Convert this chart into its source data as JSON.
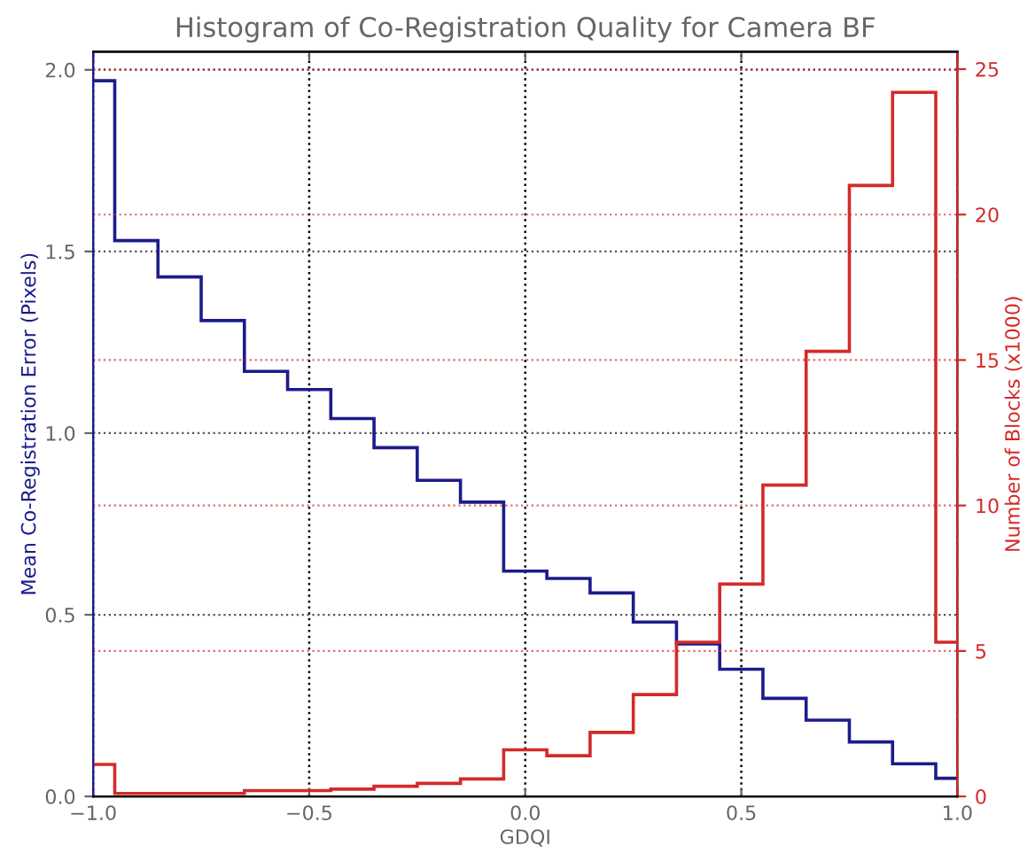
{
  "chart_data": {
    "type": "histogram",
    "title": "Histogram of Co-Registration Quality for Camera BF",
    "xlabel": "GDQI",
    "ylabel": "Mean Co-Registration Error (Pixels)",
    "y2label": "Number of Blocks (x1000)",
    "bins": [
      -1.0,
      -0.95,
      -0.85,
      -0.75,
      -0.65,
      -0.55,
      -0.45,
      -0.35,
      -0.25,
      -0.15,
      -0.05,
      0.05,
      0.15,
      0.25,
      0.35,
      0.45,
      0.55,
      0.65,
      0.75,
      0.85,
      0.95,
      1.0
    ],
    "series": [
      {
        "color": "#1c1c8c",
        "values": [
          1.97,
          1.53,
          1.43,
          1.31,
          1.17,
          1.12,
          1.04,
          0.96,
          0.87,
          0.81,
          0.62,
          0.6,
          0.56,
          0.48,
          0.42,
          0.35,
          0.27,
          0.21,
          0.15,
          0.09,
          0.05
        ]
      },
      {
        "color": "#d42a2a",
        "axis": "y2",
        "values": [
          1.1,
          0.1,
          0.1,
          0.1,
          0.2,
          0.2,
          0.25,
          0.35,
          0.45,
          0.6,
          1.6,
          1.4,
          2.2,
          3.5,
          5.3,
          7.3,
          10.7,
          15.3,
          21.0,
          24.2,
          5.3
        ]
      }
    ],
    "xlim": [
      -1.0,
      1.0
    ],
    "xticks": [
      {
        "value": -1.0,
        "label": "−1.0"
      },
      {
        "value": -0.5,
        "label": "−0.5"
      },
      {
        "value": 0.0,
        "label": "0.0"
      },
      {
        "value": 0.5,
        "label": "0.5"
      },
      {
        "value": 1.0,
        "label": "1.0"
      }
    ],
    "ylim": [
      0.0,
      2.05
    ],
    "yticks": [
      {
        "value": 0.0,
        "label": "0.0"
      },
      {
        "value": 0.5,
        "label": "0.5"
      },
      {
        "value": 1.0,
        "label": "1.0"
      },
      {
        "value": 1.5,
        "label": "1.5"
      },
      {
        "value": 2.0,
        "label": "2.0"
      }
    ],
    "y2lim": [
      0,
      25.6
    ],
    "y2ticks": [
      0,
      5,
      10,
      15,
      20,
      25
    ],
    "grid": true
  }
}
